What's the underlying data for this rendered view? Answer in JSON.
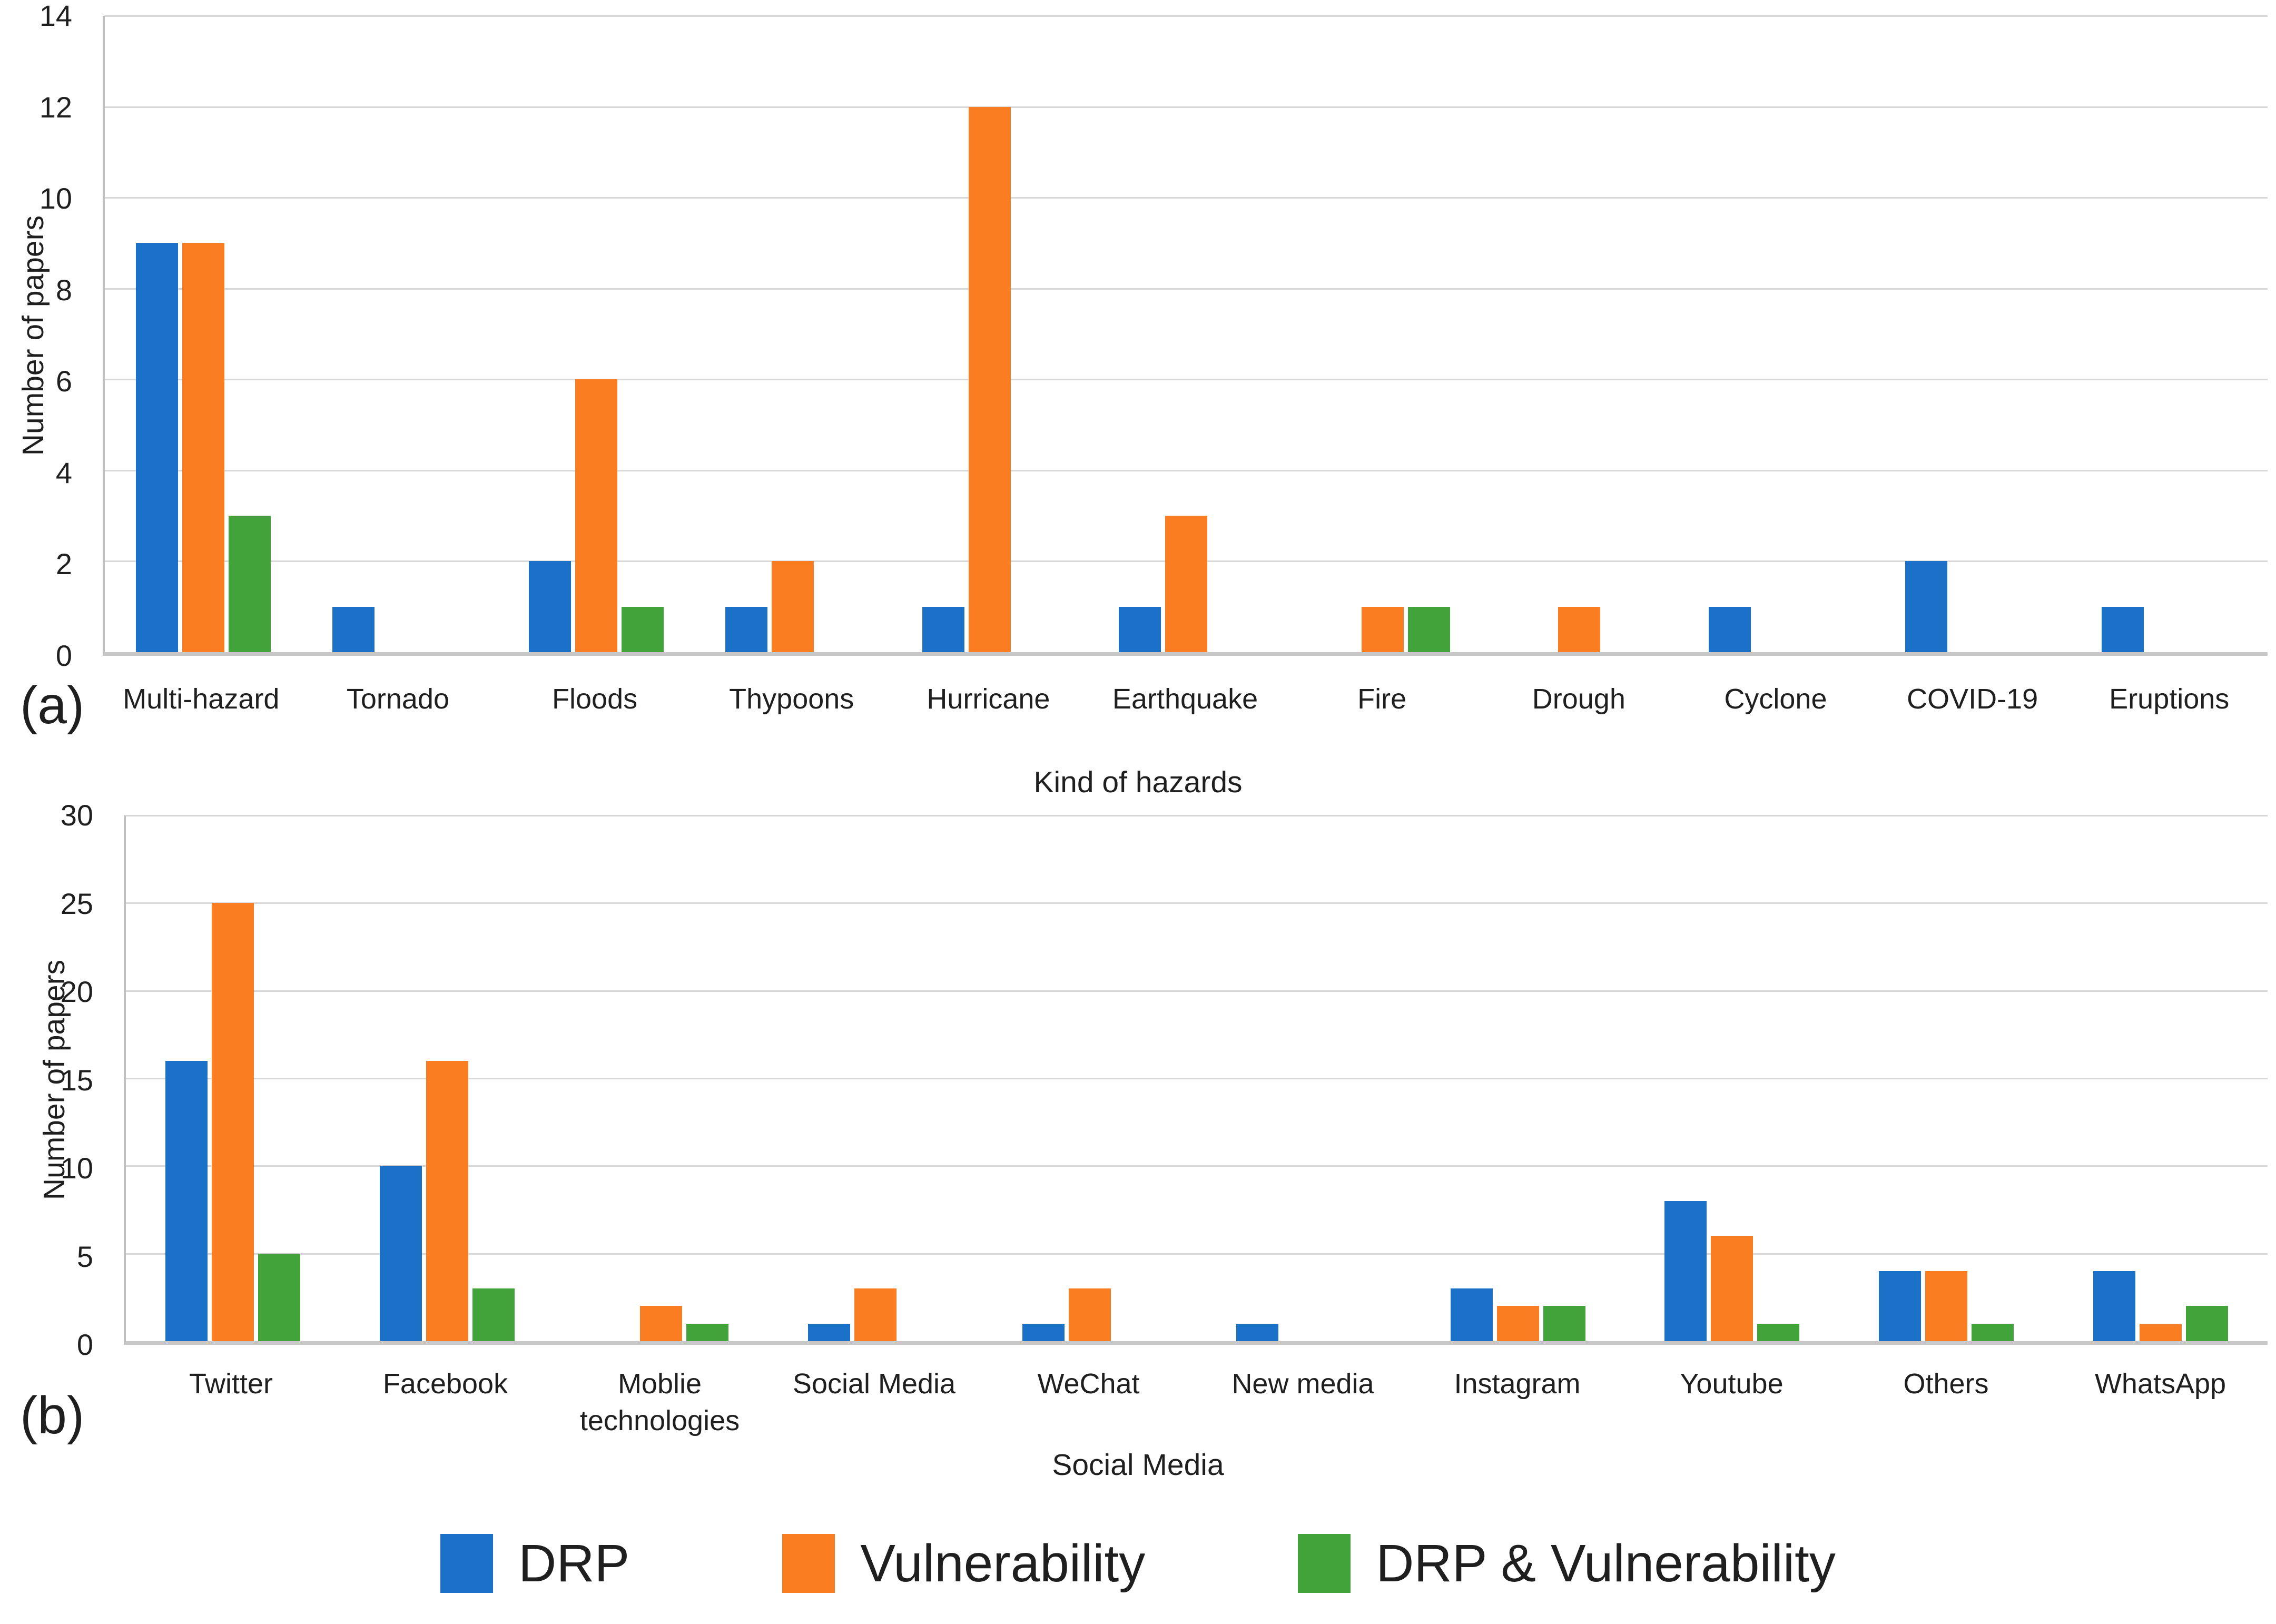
{
  "legend": {
    "items": [
      {
        "label": "DRP",
        "color": "#1B70C8"
      },
      {
        "label": "Vulnerability",
        "color": "#FA7D22"
      },
      {
        "label": "DRP & Vulnerability",
        "color": "#41A339"
      }
    ]
  },
  "colors": {
    "blue": "#1B70C8",
    "orange": "#FA7D22",
    "green": "#41A339",
    "gridline": "#D8D8D8",
    "axis_line": "#C8C8C8",
    "text": "#1F1F1F"
  },
  "chart_data": [
    {
      "type": "bar",
      "panel_label": "(a)",
      "title": "",
      "xlabel": "Kind of hazards",
      "ylabel": "Number of papers",
      "ylim": [
        0,
        14
      ],
      "ytick_step": 2,
      "yticks": [
        0,
        2,
        4,
        6,
        8,
        10,
        12,
        14
      ],
      "grid": true,
      "legend_position": "shared-bottom",
      "categories": [
        "Multi-hazard",
        "Tornado",
        "Floods",
        "Thypoons",
        "Hurricane",
        "Earthquake",
        "Fire",
        "Drough",
        "Cyclone",
        "COVID-19",
        "Eruptions"
      ],
      "series": [
        {
          "name": "DRP",
          "color": "#1B70C8",
          "values": [
            9,
            1,
            2,
            1,
            1,
            1,
            0,
            0,
            1,
            2,
            1
          ]
        },
        {
          "name": "Vulnerability",
          "color": "#FA7D22",
          "values": [
            9,
            0,
            6,
            2,
            12,
            3,
            1,
            1,
            0,
            0,
            0
          ]
        },
        {
          "name": "DRP & Vulnerability",
          "color": "#41A339",
          "values": [
            3,
            0,
            1,
            0,
            0,
            0,
            1,
            0,
            0,
            0,
            0
          ]
        }
      ]
    },
    {
      "type": "bar",
      "panel_label": "(b)",
      "title": "",
      "xlabel": "Social Media",
      "ylabel": "Number of papers",
      "ylim": [
        0,
        30
      ],
      "ytick_step": 5,
      "yticks": [
        0,
        5,
        10,
        15,
        20,
        25,
        30
      ],
      "grid": true,
      "legend_position": "shared-bottom",
      "categories": [
        "Twitter",
        "Facebook",
        "Moblie technologies",
        "Social Media",
        "WeChat",
        "New media",
        "Instagram",
        "Youtube",
        "Others",
        "WhatsApp"
      ],
      "series": [
        {
          "name": "DRP",
          "color": "#1B70C8",
          "values": [
            16,
            10,
            0,
            1,
            1,
            1,
            3,
            8,
            4,
            4
          ]
        },
        {
          "name": "Vulnerability",
          "color": "#FA7D22",
          "values": [
            25,
            16,
            2,
            3,
            3,
            0,
            2,
            6,
            4,
            1
          ]
        },
        {
          "name": "DRP & Vulnerability",
          "color": "#41A339",
          "values": [
            5,
            3,
            1,
            0,
            0,
            0,
            2,
            1,
            1,
            2
          ]
        }
      ]
    }
  ]
}
